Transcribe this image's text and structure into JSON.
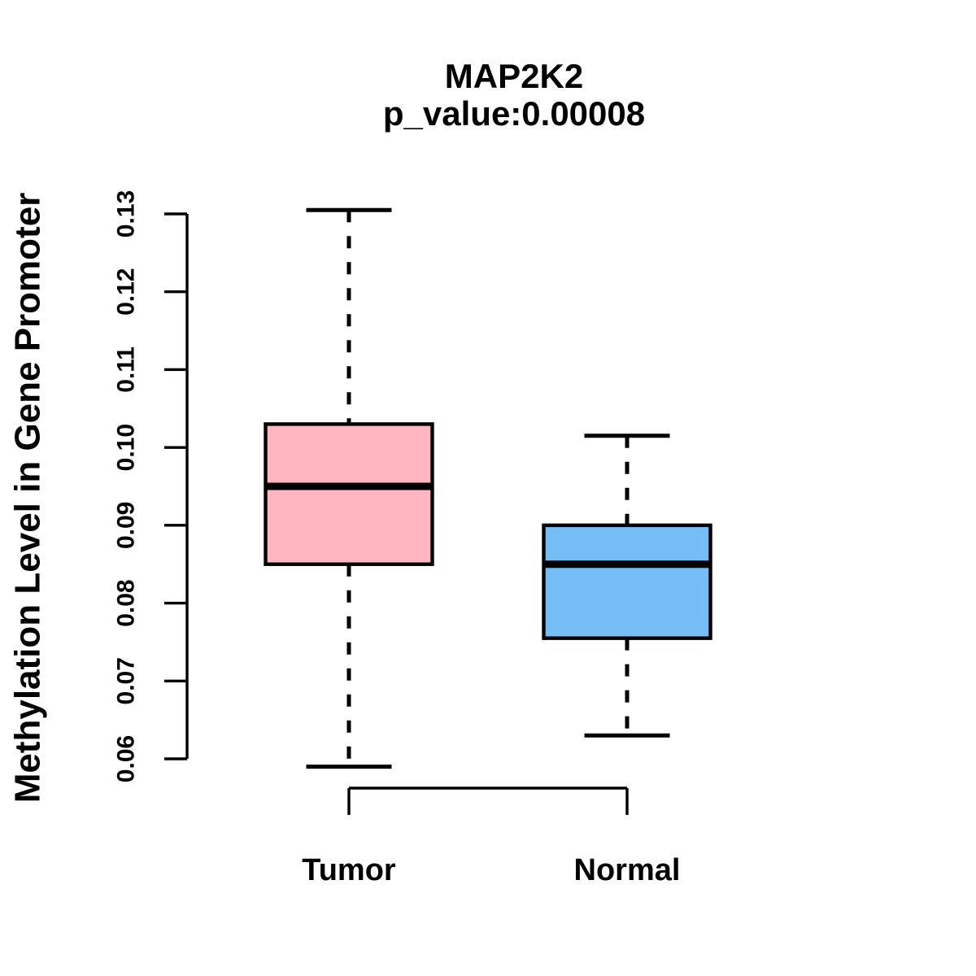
{
  "chart_data": {
    "type": "boxplot",
    "title": "MAP2K2",
    "subtitle": "p_value:0.00008",
    "ylabel": "Methylation Level in Gene Promoter",
    "xlabel": "",
    "ylim": [
      0.06,
      0.13
    ],
    "yticks": [
      "0.06",
      "0.07",
      "0.08",
      "0.09",
      "0.10",
      "0.11",
      "0.12",
      "0.13"
    ],
    "grid": false,
    "legend": "none",
    "line_color": "#000000",
    "background_color": "#ffffff",
    "groups": [
      {
        "label": "Tumor",
        "fill_color": "#FFB6C1",
        "stats": {
          "lower_whisker": 0.059,
          "q1": 0.085,
          "median": 0.095,
          "q3": 0.103,
          "upper_whisker": 0.1305
        },
        "outliers": []
      },
      {
        "label": "Normal",
        "fill_color": "#74BEF5",
        "stats": {
          "lower_whisker": 0.063,
          "q1": 0.0755,
          "median": 0.085,
          "q3": 0.09,
          "upper_whisker": 0.1015
        },
        "outliers": []
      }
    ]
  }
}
